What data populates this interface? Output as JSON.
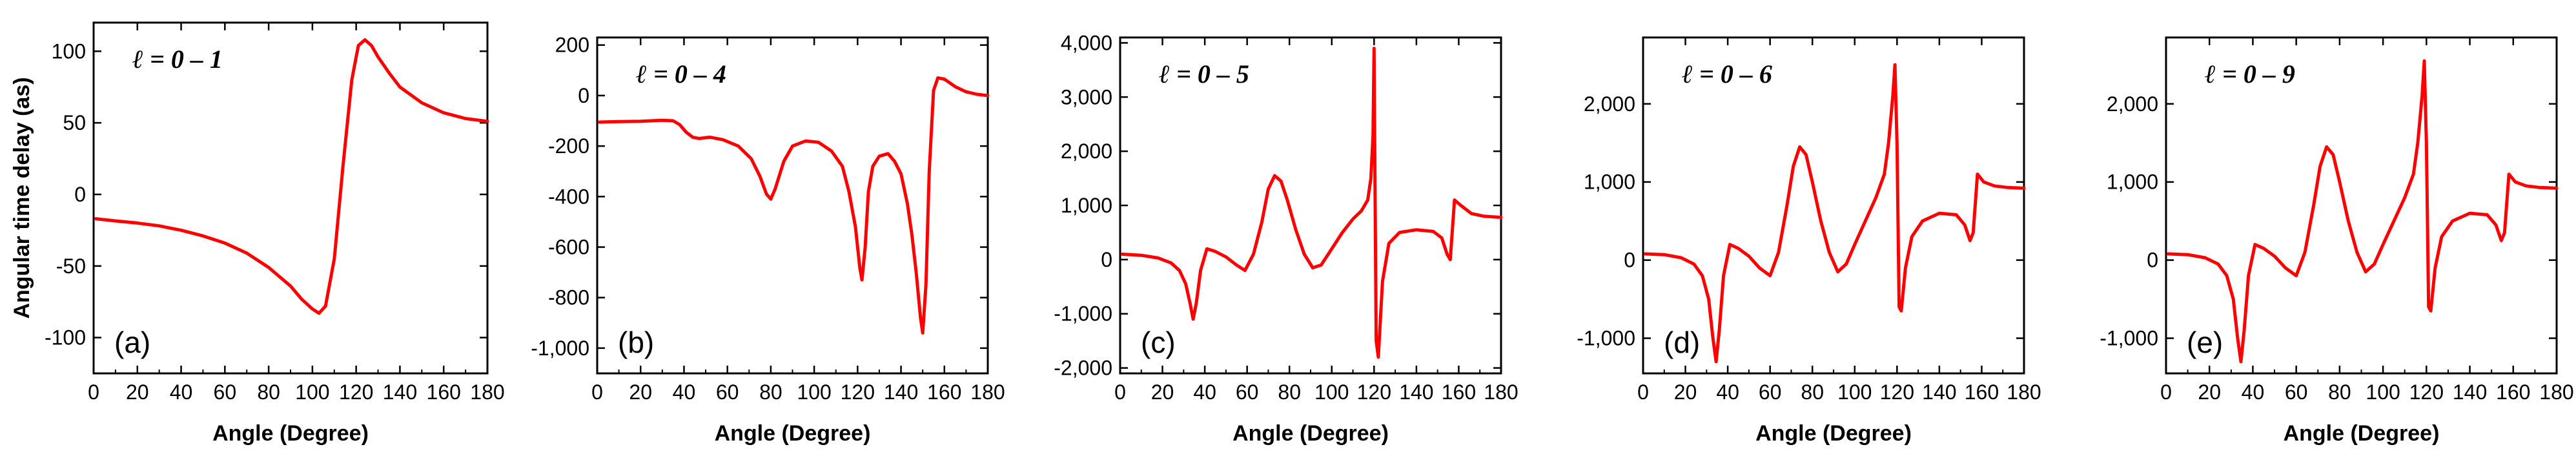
{
  "chart_data": [
    {
      "type": "line",
      "panel_label": "(a)",
      "legend": "ℓ = 0 – 1",
      "xlabel": "Angle (Degree)",
      "ylabel": "Angular time delay (as)",
      "xlim": [
        0,
        180
      ],
      "ylim": [
        -125,
        120
      ],
      "x_ticks": [
        0,
        20,
        40,
        60,
        80,
        100,
        120,
        140,
        160,
        180
      ],
      "x_tick_labels": [
        "0",
        "20",
        "40",
        "60",
        "80",
        "100",
        "120",
        "140",
        "160",
        "180"
      ],
      "y_ticks": [
        -100,
        -50,
        0,
        50,
        100
      ],
      "y_tick_labels": [
        "-100",
        "-50",
        "0",
        "50",
        "100"
      ],
      "series": [
        {
          "name": "ℓ = 0 – 1",
          "color": "#ff0000",
          "x": [
            1,
            10,
            20,
            30,
            40,
            50,
            60,
            70,
            80,
            90,
            95,
            100,
            103,
            106,
            110,
            114,
            118,
            121,
            124,
            127,
            130,
            135,
            140,
            150,
            160,
            170,
            180
          ],
          "y": [
            -17,
            -18.5,
            -20,
            -22,
            -25,
            -29,
            -34,
            -41,
            -51,
            -64,
            -73,
            -80,
            -83,
            -78,
            -45,
            20,
            80,
            104,
            108,
            104,
            96,
            85,
            75,
            64,
            57,
            53,
            51
          ]
        }
      ]
    },
    {
      "type": "line",
      "panel_label": "(b)",
      "legend": "ℓ = 0 – 4",
      "xlabel": "Angle (Degree)",
      "ylabel": "",
      "xlim": [
        0,
        180
      ],
      "ylim": [
        -1100,
        230
      ],
      "x_ticks": [
        0,
        20,
        40,
        60,
        80,
        100,
        120,
        140,
        160,
        180
      ],
      "x_tick_labels": [
        "0",
        "20",
        "40",
        "60",
        "80",
        "100",
        "120",
        "140",
        "160",
        "180"
      ],
      "y_ticks": [
        -1000,
        -800,
        -600,
        -400,
        -200,
        0,
        200
      ],
      "y_tick_labels": [
        "-1,000",
        "-800",
        "-600",
        "-400",
        "-200",
        "0",
        "200"
      ],
      "series": [
        {
          "name": "ℓ = 0 – 4",
          "color": "#ff0000",
          "x": [
            1,
            10,
            20,
            30,
            35,
            38,
            41,
            44,
            47,
            52,
            58,
            65,
            71,
            75,
            78,
            80,
            82,
            86,
            90,
            96,
            102,
            108,
            113,
            116,
            119,
            121,
            122,
            123.5,
            125,
            127,
            130,
            134,
            137,
            140,
            143,
            145,
            147,
            149,
            150,
            151.5,
            153,
            155,
            157,
            160,
            165,
            170,
            175,
            180
          ],
          "y": [
            -105,
            -103,
            -102,
            -98,
            -100,
            -115,
            -145,
            -165,
            -170,
            -165,
            -175,
            -200,
            -250,
            -320,
            -390,
            -410,
            -370,
            -260,
            -200,
            -180,
            -185,
            -220,
            -280,
            -380,
            -520,
            -680,
            -730,
            -600,
            -380,
            -280,
            -240,
            -230,
            -260,
            -310,
            -430,
            -550,
            -700,
            -880,
            -940,
            -750,
            -300,
            20,
            70,
            65,
            35,
            15,
            5,
            0
          ]
        }
      ]
    },
    {
      "type": "line",
      "panel_label": "(c)",
      "legend": "ℓ = 0 – 5",
      "xlabel": "Angle (Degree)",
      "ylabel": "",
      "xlim": [
        0,
        180
      ],
      "ylim": [
        -2100,
        4100
      ],
      "x_ticks": [
        0,
        20,
        40,
        60,
        80,
        100,
        120,
        140,
        160,
        180
      ],
      "x_tick_labels": [
        "0",
        "20",
        "40",
        "60",
        "80",
        "100",
        "120",
        "140",
        "160",
        "180"
      ],
      "y_ticks": [
        -2000,
        -1000,
        0,
        1000,
        2000,
        3000,
        4000
      ],
      "y_tick_labels": [
        "-2,000",
        "-1,000",
        "0",
        "1,000",
        "2,000",
        "3,000",
        "4,000"
      ],
      "series": [
        {
          "name": "ℓ = 0 – 5",
          "color": "#ff0000",
          "x": [
            1,
            10,
            18,
            24,
            28,
            31,
            33,
            34.5,
            36,
            38,
            41,
            45,
            50,
            55,
            59,
            63,
            67,
            70,
            73,
            76,
            79,
            83,
            87,
            91,
            95,
            100,
            105,
            110,
            114,
            117,
            118.5,
            119.5,
            120,
            120.5,
            121,
            122,
            124,
            127,
            132,
            140,
            148,
            152,
            154.5,
            156,
            158,
            161,
            166,
            172,
            180
          ],
          "y": [
            100,
            80,
            30,
            -60,
            -200,
            -450,
            -800,
            -1100,
            -800,
            -200,
            200,
            150,
            50,
            -100,
            -200,
            100,
            700,
            1300,
            1550,
            1450,
            1100,
            550,
            100,
            -150,
            -100,
            200,
            500,
            750,
            900,
            1100,
            1500,
            2300,
            3900,
            1000,
            -1500,
            -1800,
            -400,
            300,
            500,
            550,
            520,
            400,
            100,
            0,
            1100,
            1000,
            850,
            800,
            780
          ]
        }
      ]
    },
    {
      "type": "line",
      "panel_label": "(d)",
      "legend": "ℓ = 0 – 6",
      "xlabel": "Angle (Degree)",
      "ylabel": "",
      "xlim": [
        0,
        180
      ],
      "ylim": [
        -1450,
        2850
      ],
      "x_ticks": [
        0,
        20,
        40,
        60,
        80,
        100,
        120,
        140,
        160,
        180
      ],
      "x_tick_labels": [
        "0",
        "20",
        "40",
        "60",
        "80",
        "100",
        "120",
        "140",
        "160",
        "180"
      ],
      "y_ticks": [
        -1000,
        0,
        1000,
        2000
      ],
      "y_tick_labels": [
        "-1,000",
        "0",
        "1,000",
        "2,000"
      ],
      "series": [
        {
          "name": "ℓ = 0 – 6",
          "color": "#ff0000",
          "x": [
            1,
            10,
            18,
            24,
            28,
            31,
            33,
            34.5,
            36,
            38,
            41,
            45,
            50,
            55,
            60,
            64,
            68,
            71,
            74,
            77,
            80,
            84,
            88,
            92,
            96,
            100,
            105,
            110,
            114,
            116,
            118,
            119,
            120,
            121,
            122,
            124,
            127,
            132,
            140,
            148,
            152,
            154.5,
            156,
            158,
            161,
            166,
            172,
            180
          ],
          "y": [
            80,
            70,
            30,
            -50,
            -200,
            -500,
            -1000,
            -1300,
            -900,
            -200,
            200,
            150,
            50,
            -100,
            -200,
            100,
            700,
            1200,
            1450,
            1350,
            1000,
            500,
            100,
            -150,
            -50,
            200,
            500,
            800,
            1100,
            1500,
            2100,
            2500,
            1500,
            -600,
            -650,
            -100,
            300,
            500,
            600,
            580,
            450,
            250,
            350,
            1100,
            1000,
            950,
            930,
            920
          ]
        }
      ]
    },
    {
      "type": "line",
      "panel_label": "(e)",
      "legend": "ℓ = 0 – 9",
      "xlabel": "Angle (Degree)",
      "ylabel": "",
      "xlim": [
        0,
        180
      ],
      "ylim": [
        -1450,
        2850
      ],
      "x_ticks": [
        0,
        20,
        40,
        60,
        80,
        100,
        120,
        140,
        160,
        180
      ],
      "x_tick_labels": [
        "0",
        "20",
        "40",
        "60",
        "80",
        "100",
        "120",
        "140",
        "160",
        "180"
      ],
      "y_ticks": [
        -1000,
        0,
        1000,
        2000
      ],
      "y_tick_labels": [
        "-1,000",
        "0",
        "1,000",
        "2,000"
      ],
      "series": [
        {
          "name": "ℓ = 0 – 9",
          "color": "#ff0000",
          "x": [
            1,
            10,
            18,
            24,
            28,
            31,
            33,
            34.5,
            36,
            38,
            41,
            45,
            50,
            55,
            60,
            64,
            68,
            71,
            74,
            77,
            80,
            84,
            88,
            92,
            96,
            100,
            105,
            110,
            114,
            116,
            118,
            119,
            120,
            121,
            122,
            124,
            127,
            132,
            140,
            148,
            152,
            154.5,
            156,
            158,
            161,
            166,
            172,
            180
          ],
          "y": [
            80,
            70,
            30,
            -50,
            -200,
            -500,
            -1000,
            -1300,
            -900,
            -200,
            200,
            150,
            50,
            -100,
            -200,
            100,
            700,
            1200,
            1450,
            1350,
            1000,
            500,
            100,
            -150,
            -50,
            200,
            500,
            800,
            1100,
            1500,
            2100,
            2550,
            1500,
            -600,
            -650,
            -100,
            300,
            500,
            600,
            580,
            450,
            250,
            350,
            1100,
            1000,
            950,
            930,
            920
          ]
        }
      ]
    }
  ]
}
